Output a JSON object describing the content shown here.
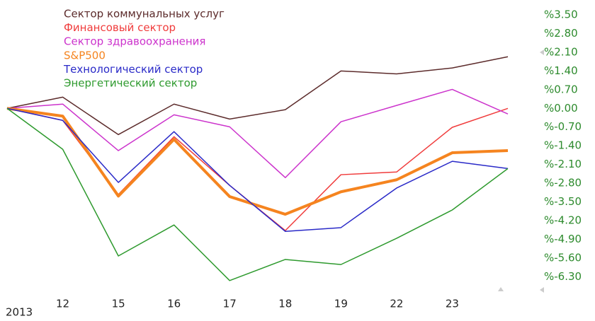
{
  "chart_data": {
    "type": "line",
    "categories": [
      null,
      "12",
      "15",
      "16",
      "17",
      "18",
      "19",
      "22",
      "23",
      null
    ],
    "year_label": "2013",
    "series": [
      {
        "name": "Сектор коммунальных услуг",
        "color": "#5c2b2b",
        "width": 1.5,
        "values": [
          0,
          0.42,
          -0.98,
          0.16,
          -0.4,
          -0.05,
          1.4,
          1.29,
          1.51,
          1.93
        ]
      },
      {
        "name": "Финансовый сектор",
        "color": "#f03c3c",
        "width": 1.5,
        "values": [
          0,
          -0.45,
          -3.22,
          -1.06,
          -2.88,
          -4.57,
          -2.48,
          -2.38,
          -0.71,
          0
        ]
      },
      {
        "name": "Сектор здравоохранения",
        "color": "#cc33cc",
        "width": 1.5,
        "values": [
          0,
          0.16,
          -1.58,
          -0.24,
          -0.69,
          -2.59,
          -0.5,
          0.11,
          0.71,
          -0.21
        ]
      },
      {
        "name": "S&P500",
        "color": "#f5841f",
        "width": 4,
        "values": [
          0,
          -0.29,
          -3.28,
          -1.16,
          -3.3,
          -3.96,
          -3.12,
          -2.67,
          -1.66,
          -1.58
        ]
      },
      {
        "name": "Технологический сектор",
        "color": "#2a2ac8",
        "width": 1.5,
        "values": [
          0,
          -0.45,
          -2.77,
          -0.87,
          -2.88,
          -4.6,
          -4.46,
          -2.98,
          -1.98,
          -2.25
        ]
      },
      {
        "name": "Энергетический сектор",
        "color": "#2e9a2e",
        "width": 1.5,
        "values": [
          0,
          -1.53,
          -5.52,
          -4.36,
          -6.44,
          -5.65,
          -5.84,
          -4.86,
          -3.8,
          -2.25
        ]
      }
    ],
    "ylim": [
      -7.0,
      4.0
    ],
    "yticks": [
      {
        "value": 3.5,
        "label": "%3.50"
      },
      {
        "value": 2.8,
        "label": "%2.80"
      },
      {
        "value": 2.1,
        "label": "%2.10"
      },
      {
        "value": 1.4,
        "label": "%1.40"
      },
      {
        "value": 0.7,
        "label": "%0.70"
      },
      {
        "value": 0,
        "label": "%0.00"
      },
      {
        "value": -0.7,
        "label": "%-0.70"
      },
      {
        "value": -1.4,
        "label": "%-1.40"
      },
      {
        "value": -2.1,
        "label": "%-2.10"
      },
      {
        "value": -2.8,
        "label": "%-2.80"
      },
      {
        "value": -3.5,
        "label": "%-3.50"
      },
      {
        "value": -4.2,
        "label": "%-4.20"
      },
      {
        "value": -4.9,
        "label": "%-4.90"
      },
      {
        "value": -5.6,
        "label": "%-5.60"
      },
      {
        "value": -6.3,
        "label": "%-6.30"
      }
    ],
    "ytick_color": "#2e8b2e",
    "grid": false
  }
}
